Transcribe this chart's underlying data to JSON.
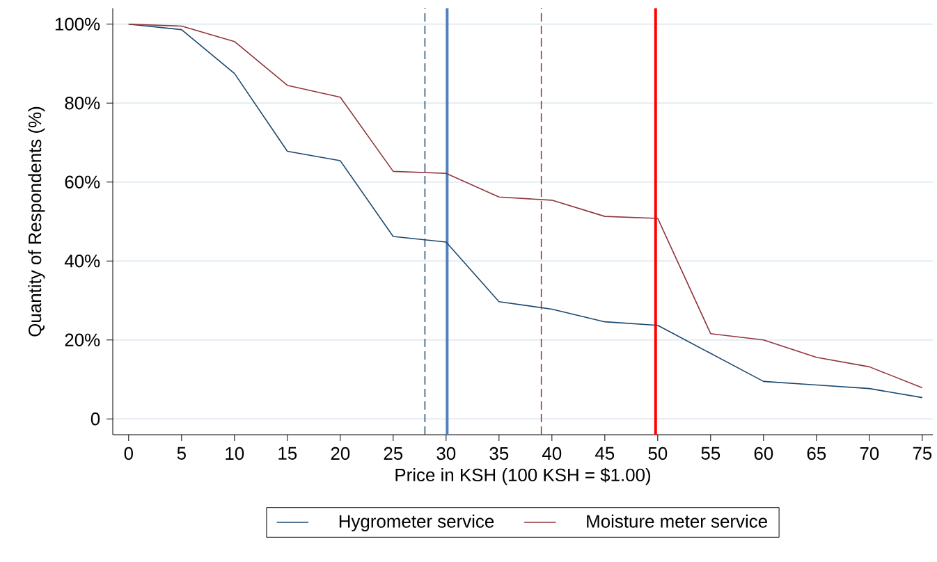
{
  "chart_data": {
    "type": "line",
    "xlabel": "Price in KSH (100 KSH = $1.00)",
    "ylabel": "Quantity of Respondents (%)",
    "x": [
      0,
      5,
      10,
      15,
      20,
      25,
      30,
      35,
      40,
      45,
      50,
      55,
      60,
      65,
      70,
      75
    ],
    "series": [
      {
        "name": "Hygrometer service",
        "color": "#1a476f",
        "values": [
          100,
          98.6,
          87.5,
          67.8,
          65.4,
          46.2,
          44.8,
          29.7,
          27.8,
          24.6,
          23.7,
          16.6,
          9.5,
          8.6,
          7.7,
          5.4
        ]
      },
      {
        "name": "Moisture meter service",
        "color": "#90353b",
        "values": [
          100,
          99.5,
          95.6,
          84.5,
          81.5,
          62.7,
          62.2,
          56.2,
          55.4,
          51.3,
          50.8,
          21.6,
          20.0,
          15.6,
          13.2,
          7.9
        ]
      }
    ],
    "xlim": [
      -1.5,
      76
    ],
    "ylim": [
      -4,
      104
    ],
    "xticks": [
      0,
      5,
      10,
      15,
      20,
      25,
      30,
      35,
      40,
      45,
      50,
      55,
      60,
      65,
      70,
      75
    ],
    "yticks": [
      0,
      {
        "value": 20,
        "label": "20%"
      },
      {
        "value": 40,
        "label": "40%"
      },
      {
        "value": 60,
        "label": "60%"
      },
      {
        "value": 80,
        "label": "80%"
      },
      {
        "value": 100,
        "label": "100%"
      }
    ],
    "ref_lines": [
      {
        "axis": "x",
        "value": 28,
        "color": "#1a476f",
        "line_style": "dashed"
      },
      {
        "axis": "x",
        "value": 30.1,
        "color": "#4e81bd",
        "line_style": "solid"
      },
      {
        "axis": "x",
        "value": 39,
        "color": "#90353b",
        "line_style": "dashed"
      },
      {
        "axis": "x",
        "value": 49.8,
        "color": "#ff0000",
        "line_style": "solid"
      }
    ],
    "grid": "y",
    "legend": "bottom",
    "marker": "none",
    "line_style": "solid"
  }
}
